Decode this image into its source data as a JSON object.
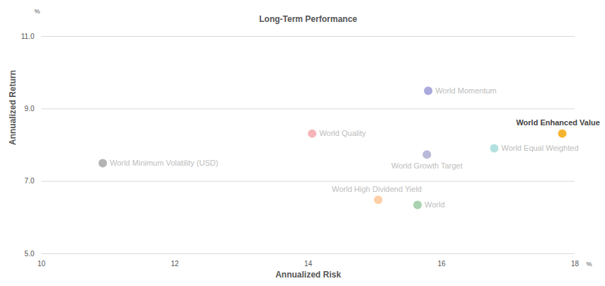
{
  "chart_data": {
    "type": "scatter",
    "title": "Long-Term Performance",
    "xlabel": "Annualized Risk",
    "ylabel": "Annualized Return",
    "xunit": "%",
    "yunit": "%",
    "xlim": [
      10,
      18
    ],
    "xticks": [
      10,
      12,
      14,
      16,
      18
    ],
    "ylim": [
      5,
      11
    ],
    "yticks": [
      5,
      7,
      9,
      11
    ],
    "grid": "y",
    "series": [
      {
        "name": "World Momentum",
        "color": "#a9a9dc",
        "x": [
          15.8
        ],
        "values": [
          9.5
        ]
      },
      {
        "name": "World Enhanced Value",
        "color": "#f5b42f",
        "x": [
          17.81
        ],
        "values": [
          8.32
        ]
      },
      {
        "name": "World Quality",
        "color": "#f5b5b8",
        "x": [
          14.06
        ],
        "values": [
          8.32
        ]
      },
      {
        "name": "World Equal Weighted",
        "color": "#b3e1df",
        "x": [
          16.79
        ],
        "values": [
          7.91
        ]
      },
      {
        "name": "World Growth Target",
        "color": "#b9b9d9",
        "x": [
          15.78
        ],
        "values": [
          7.74
        ]
      },
      {
        "name": "World Minimum Volatility (USD)",
        "color": "#b3b3b3",
        "x": [
          10.92
        ],
        "values": [
          7.5
        ]
      },
      {
        "name": "World High Dividend Yield",
        "color": "#fdcfa6",
        "x": [
          15.05
        ],
        "values": [
          6.49
        ]
      },
      {
        "name": "World",
        "color": "#a8d2b0",
        "x": [
          15.64
        ],
        "values": [
          6.35
        ]
      }
    ]
  }
}
